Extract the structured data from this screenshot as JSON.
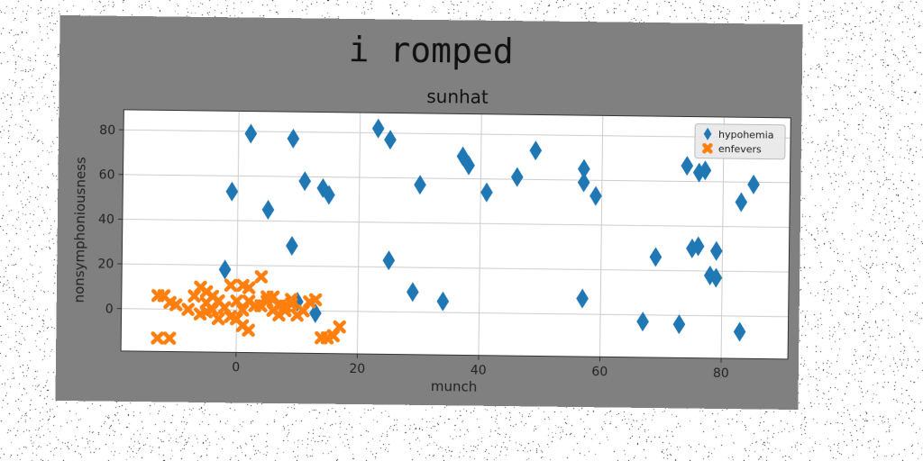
{
  "figure": {
    "suptitle": "i romped"
  },
  "colors": {
    "figure_background": "#808080",
    "plot_background": "#ffffff",
    "series1": "#1f77b4",
    "series2": "#ff7f0e"
  },
  "chart_data": {
    "type": "scatter",
    "title": "sunhat",
    "xlabel": "munch",
    "ylabel": "nonsymphoniousness",
    "xlim": [
      -19,
      91
    ],
    "ylim": [
      -19,
      89
    ],
    "xticks": [
      0,
      20,
      40,
      60,
      80
    ],
    "yticks": [
      0,
      20,
      40,
      60,
      80
    ],
    "grid": true,
    "legend_position": "top-right",
    "series": [
      {
        "name": "hypohemia",
        "marker": "diamond",
        "color": "#1f77b4",
        "points": [
          [
            2,
            79
          ],
          [
            9,
            77
          ],
          [
            -1,
            53
          ],
          [
            5,
            45
          ],
          [
            11,
            58
          ],
          [
            14,
            55
          ],
          [
            15,
            52
          ],
          [
            9,
            29
          ],
          [
            -2,
            18
          ],
          [
            10,
            4
          ],
          [
            13,
            -1
          ],
          [
            23,
            82
          ],
          [
            25,
            77
          ],
          [
            30,
            57
          ],
          [
            25,
            23
          ],
          [
            29,
            9
          ],
          [
            34,
            5
          ],
          [
            37,
            70
          ],
          [
            38,
            66
          ],
          [
            41,
            54
          ],
          [
            46,
            61
          ],
          [
            49,
            73
          ],
          [
            57,
            65
          ],
          [
            57,
            59
          ],
          [
            59,
            53
          ],
          [
            57,
            7
          ],
          [
            67,
            -3
          ],
          [
            69,
            26
          ],
          [
            73,
            -4
          ],
          [
            74,
            67
          ],
          [
            76,
            64
          ],
          [
            77,
            65
          ],
          [
            75,
            30
          ],
          [
            76,
            31
          ],
          [
            78,
            18
          ],
          [
            79,
            17
          ],
          [
            79,
            29
          ],
          [
            83,
            51
          ],
          [
            85,
            59
          ],
          [
            83,
            -7
          ]
        ]
      },
      {
        "name": "enfevers",
        "marker": "x",
        "color": "#ff7f0e",
        "points": [
          [
            -13,
            6
          ],
          [
            -12,
            6
          ],
          [
            -11,
            3
          ],
          [
            -10,
            2
          ],
          [
            -13,
            -13
          ],
          [
            -11,
            -13
          ],
          [
            -8,
            0
          ],
          [
            -6,
            10
          ],
          [
            -7,
            6
          ],
          [
            -5,
            8
          ],
          [
            -5,
            3
          ],
          [
            -6,
            -2
          ],
          [
            -4,
            0
          ],
          [
            -3,
            4
          ],
          [
            -2,
            1
          ],
          [
            -4,
            6
          ],
          [
            -5,
            -1
          ],
          [
            -3,
            -4
          ],
          [
            -1,
            -3
          ],
          [
            0,
            4
          ],
          [
            -1,
            11
          ],
          [
            1,
            11
          ],
          [
            0,
            -4
          ],
          [
            1,
            0
          ],
          [
            1,
            -7
          ],
          [
            2,
            -9
          ],
          [
            2,
            4
          ],
          [
            3,
            2
          ],
          [
            2,
            10
          ],
          [
            4,
            15
          ],
          [
            5,
            6
          ],
          [
            5,
            4
          ],
          [
            6,
            0
          ],
          [
            7,
            -2
          ],
          [
            7,
            2
          ],
          [
            6,
            6
          ],
          [
            8,
            2
          ],
          [
            9,
            5
          ],
          [
            9,
            3
          ],
          [
            10,
            -2
          ],
          [
            11,
            0
          ],
          [
            12,
            4
          ],
          [
            13,
            5
          ],
          [
            14,
            -12
          ],
          [
            15,
            -12
          ],
          [
            16,
            -11
          ],
          [
            17,
            -7
          ],
          [
            8,
            0
          ],
          [
            4,
            2
          ]
        ]
      }
    ]
  }
}
